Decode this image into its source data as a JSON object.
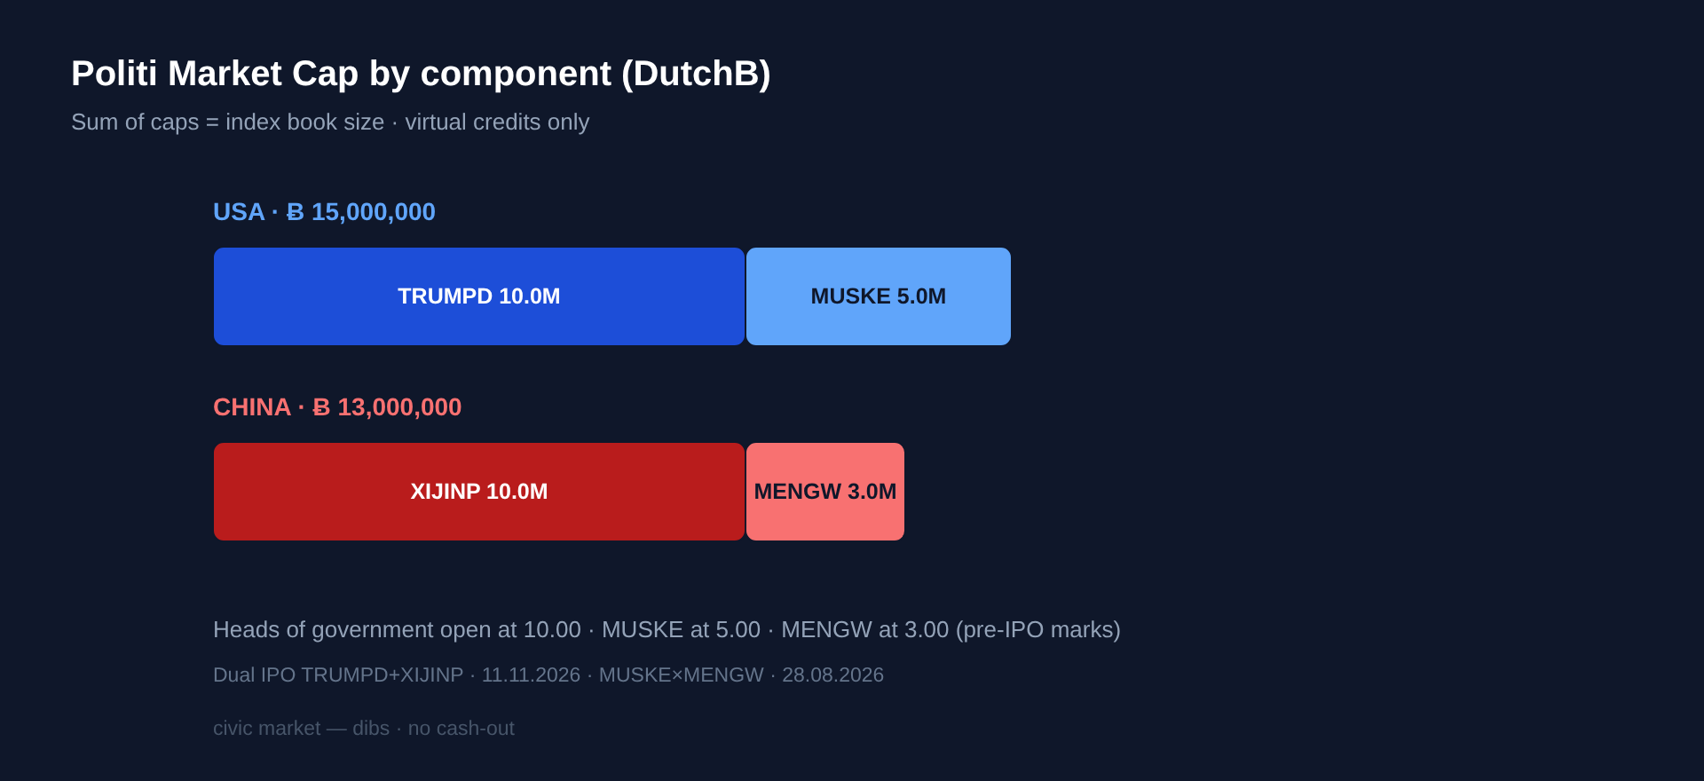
{
  "chart_data": {
    "type": "bar",
    "orientation": "horizontal",
    "stacked": true,
    "title": "Politi Market Cap by component (DutchB)",
    "subtitle": "Sum of caps = index book size · virtual credits only",
    "categories": [
      "USA · Ƀ 15,000,000",
      "CHINA · Ƀ 13,000,000"
    ],
    "series": [
      {
        "colors": [
          "#1d4ed8",
          "#b91c1c"
        ],
        "values": [
          10000000,
          10000000
        ],
        "value_labels": [
          "TRUMPD 10.0M",
          "XIJINP 10.0M"
        ]
      },
      {
        "colors": [
          "#60a5fa",
          "#f87171"
        ],
        "values": [
          5000000,
          3000000
        ],
        "value_labels": [
          "MUSKE 5.0M",
          "MENGW 3.0M"
        ]
      }
    ],
    "annotations": [
      "Heads of government open at 10.00 · MUSKE at 5.00 · MENGW at 3.00 (pre-IPO marks)",
      "Dual IPO TRUMPD+XIJINP · 11.11.2026 · MUSKE×MENGW · 28.08.2026",
      "civic market — dibs · no cash-out"
    ]
  }
}
